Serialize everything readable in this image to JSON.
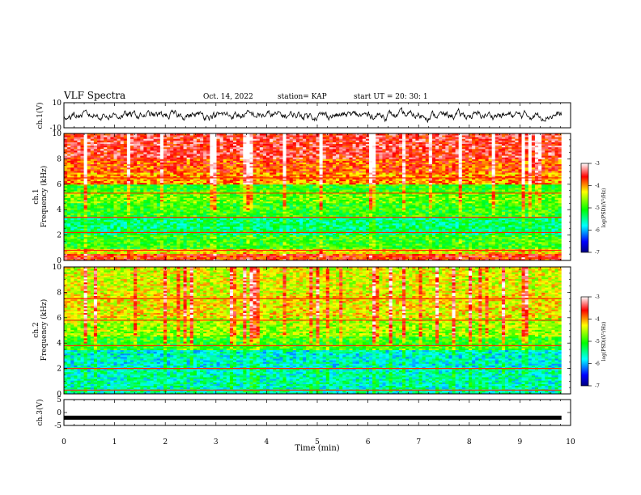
{
  "header": {
    "title": "VLF Spectra",
    "date": "Oct. 14, 2022",
    "station": "station= KAP",
    "start": "start  UT  =   20: 30: 1"
  },
  "chart_data": [
    {
      "type": "line",
      "panel": "ch1-waveform",
      "ylabel": "ch.1(V)",
      "ylim": [
        -10,
        10
      ],
      "yticks": [
        "10",
        "-10"
      ],
      "xlim": [
        0,
        10
      ],
      "color": "#000000",
      "note": "noisy waveform, amplitude roughly within ±5 V, data from 0 to ~9.8 min"
    },
    {
      "type": "heatmap",
      "panel": "ch1-spectrogram",
      "ylabel_line1": "ch.1",
      "ylabel_line2": "Frequency (kHz)",
      "ylim": [
        0,
        10
      ],
      "yticks": [
        "0",
        "2",
        "4",
        "6",
        "8",
        "10"
      ],
      "xlim": [
        0,
        9.82
      ],
      "bands": [
        {
          "from": 0.0,
          "to": 0.5,
          "level": -3.7
        },
        {
          "from": 0.5,
          "to": 1.0,
          "level": -4.3
        },
        {
          "from": 1.0,
          "to": 2.0,
          "level": -5.0
        },
        {
          "from": 2.0,
          "to": 3.5,
          "level": -5.4
        },
        {
          "from": 3.5,
          "to": 4.5,
          "level": -5.0
        },
        {
          "from": 4.5,
          "to": 5.5,
          "level": -4.8
        },
        {
          "from": 5.5,
          "to": 6.0,
          "level": -5.0
        },
        {
          "from": 6.0,
          "to": 7.0,
          "level": -4.0
        },
        {
          "from": 7.0,
          "to": 8.0,
          "level": -3.8
        },
        {
          "from": 8.0,
          "to": 10.0,
          "level": -3.5
        }
      ],
      "lines_khz": [
        0.8,
        2.2,
        3.4,
        5.3,
        6.5
      ],
      "colorbar": {
        "label": "log(PSD)(V²/Hz)",
        "range": [
          -7,
          -3
        ],
        "ticks": [
          "-3",
          "-4",
          "-5",
          "-6",
          "-7"
        ]
      }
    },
    {
      "type": "heatmap",
      "panel": "ch2-spectrogram",
      "ylabel_line1": "ch.2",
      "ylabel_line2": "Frequency (kHz)",
      "ylim": [
        0,
        10
      ],
      "yticks": [
        "0",
        "2",
        "4",
        "6",
        "8",
        "10"
      ],
      "xlim": [
        0,
        9.82
      ],
      "bands": [
        {
          "from": 0.0,
          "to": 0.6,
          "level": -5.6
        },
        {
          "from": 0.6,
          "to": 2.0,
          "level": -5.6
        },
        {
          "from": 2.0,
          "to": 3.5,
          "level": -5.7
        },
        {
          "from": 3.5,
          "to": 4.5,
          "level": -5.0
        },
        {
          "from": 4.5,
          "to": 6.0,
          "level": -4.6
        },
        {
          "from": 6.0,
          "to": 8.0,
          "level": -4.3
        },
        {
          "from": 8.0,
          "to": 10.0,
          "level": -4.4
        }
      ],
      "lines_khz": [
        0.3,
        2.0,
        3.8,
        5.8,
        7.5
      ],
      "colorbar": {
        "label": "log(PSD)(V²/Hz)",
        "range": [
          -7,
          -3
        ],
        "ticks": [
          "-3",
          "-4",
          "-5",
          "-6",
          "-7"
        ]
      }
    },
    {
      "type": "line",
      "panel": "ch3-waveform",
      "ylabel": "ch.3(V)",
      "ylim": [
        -5,
        5
      ],
      "yticks": [
        "5",
        "0",
        "-5"
      ],
      "xlim": [
        0,
        10
      ],
      "level": -2,
      "color": "#000000"
    }
  ],
  "xaxis": {
    "label": "Time  (min)",
    "ticks": [
      "0",
      "1",
      "2",
      "3",
      "4",
      "5",
      "6",
      "7",
      "8",
      "9",
      "10"
    ],
    "range": [
      0,
      10
    ]
  },
  "colors": {
    "scale": [
      "#000080",
      "#0000ff",
      "#00ffff",
      "#00ff00",
      "#ffff00",
      "#ff0000",
      "#ffffff"
    ]
  }
}
